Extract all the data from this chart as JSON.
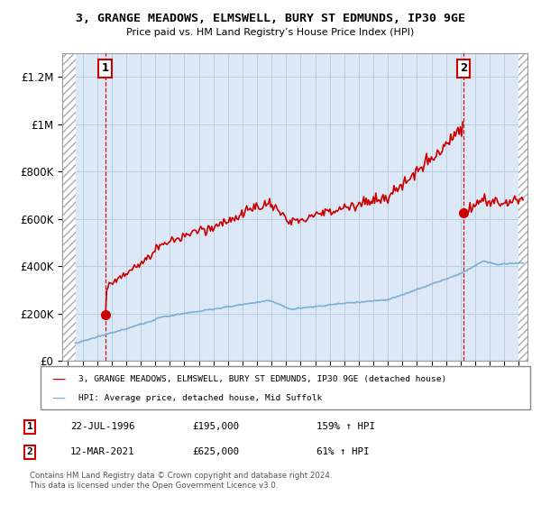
{
  "title": "3, GRANGE MEADOWS, ELMSWELL, BURY ST EDMUNDS, IP30 9GE",
  "subtitle": "Price paid vs. HM Land Registry’s House Price Index (HPI)",
  "ylim": [
    0,
    1300000
  ],
  "yticks": [
    0,
    200000,
    400000,
    600000,
    800000,
    1000000,
    1200000
  ],
  "ytick_labels": [
    "£0",
    "£200K",
    "£400K",
    "£600K",
    "£800K",
    "£1M",
    "£1.2M"
  ],
  "xmin": 1993.6,
  "xmax": 2025.6,
  "data_xmin": 1994.5,
  "data_xmax": 2025.0,
  "sale1_x": 1996.55,
  "sale1_y": 195000,
  "sale2_x": 2021.2,
  "sale2_y": 625000,
  "legend_line1": "3, GRANGE MEADOWS, ELMSWELL, BURY ST EDMUNDS, IP30 9GE (detached house)",
  "legend_line2": "HPI: Average price, detached house, Mid Suffolk",
  "annotation1_date": "22-JUL-1996",
  "annotation1_price": "£195,000",
  "annotation1_hpi": "159% ↑ HPI",
  "annotation2_date": "12-MAR-2021",
  "annotation2_price": "£625,000",
  "annotation2_hpi": "61% ↑ HPI",
  "footer": "Contains HM Land Registry data © Crown copyright and database right 2024.\nThis data is licensed under the Open Government Licence v3.0.",
  "red_color": "#cc0000",
  "blue_color": "#7bafd4",
  "plot_bg": "#dce8f5"
}
